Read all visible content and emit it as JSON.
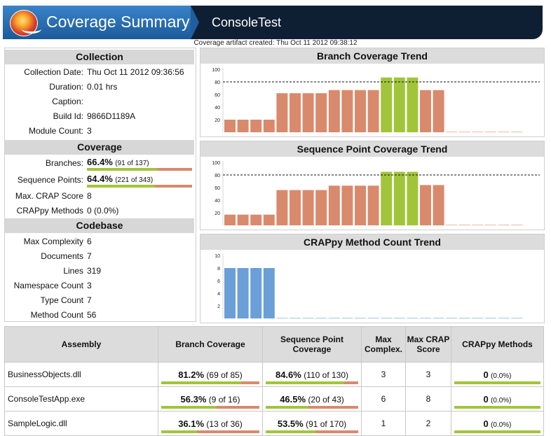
{
  "header": {
    "title": "Coverage Summary",
    "subtitle": "ConsoleTest",
    "artifact": "Coverage artifact created: Thu Oct 11 2012 09:38:12"
  },
  "collection": {
    "heading": "Collection",
    "rows": [
      {
        "label": "Collection Date:",
        "value": "Thu Oct 11 2012 09:36:56"
      },
      {
        "label": "Duration:",
        "value": "0.01 hrs"
      },
      {
        "label": "Caption:",
        "value": ""
      },
      {
        "label": "Build Id:",
        "value": "9866D1189A"
      },
      {
        "label": "Module Count:",
        "value": "3"
      }
    ]
  },
  "coverage": {
    "heading": "Coverage",
    "branches": {
      "label": "Branches:",
      "pct": "66.4%",
      "detail": "(91 of 137)",
      "fraction": 0.664
    },
    "sequence": {
      "label": "Sequence Points:",
      "pct": "64.4%",
      "detail": "(221 of 343)",
      "fraction": 0.644
    },
    "crap": {
      "label": "Max. CRAP Score",
      "value": "8"
    },
    "crappy": {
      "label": "CRAPpy Methods",
      "value": "0 (0.0%)"
    }
  },
  "codebase": {
    "heading": "Codebase",
    "rows": [
      {
        "label": "Max Complexity",
        "value": "6"
      },
      {
        "label": "Documents",
        "value": "7"
      },
      {
        "label": "Lines",
        "value": "319"
      },
      {
        "label": "Namespace Count",
        "value": "3"
      },
      {
        "label": "Type Count",
        "value": "7"
      },
      {
        "label": "Method Count",
        "value": "56"
      }
    ]
  },
  "chart_data": [
    {
      "type": "bar",
      "title": "Branch Coverage Trend",
      "ylim": [
        0,
        100
      ],
      "yticks": [
        "100",
        "80",
        "60",
        "40",
        "20"
      ],
      "reference": 80,
      "values": [
        20,
        20,
        20,
        20,
        62,
        62,
        62,
        62,
        67,
        67,
        67,
        67,
        87,
        87,
        87,
        67,
        67,
        0,
        0,
        0,
        0,
        0,
        0
      ],
      "colors": [
        "#d98a6c",
        "#d98a6c",
        "#d98a6c",
        "#d98a6c",
        "#d98a6c",
        "#d98a6c",
        "#d98a6c",
        "#d98a6c",
        "#d98a6c",
        "#d98a6c",
        "#d98a6c",
        "#d98a6c",
        "#a2c43a",
        "#a2c43a",
        "#a2c43a",
        "#d98a6c",
        "#d98a6c",
        "#d98a6c",
        "#d98a6c",
        "#d98a6c",
        "#d98a6c",
        "#d98a6c",
        "#d98a6c"
      ]
    },
    {
      "type": "bar",
      "title": "Sequence Point Coverage Trend",
      "ylim": [
        0,
        100
      ],
      "yticks": [
        "100",
        "80",
        "60",
        "40",
        "20"
      ],
      "reference": 80,
      "values": [
        17,
        17,
        17,
        17,
        56,
        56,
        56,
        56,
        63,
        63,
        63,
        63,
        85,
        85,
        85,
        64,
        64,
        0,
        0,
        0,
        0,
        0,
        0
      ],
      "colors": [
        "#d98a6c",
        "#d98a6c",
        "#d98a6c",
        "#d98a6c",
        "#d98a6c",
        "#d98a6c",
        "#d98a6c",
        "#d98a6c",
        "#d98a6c",
        "#d98a6c",
        "#d98a6c",
        "#d98a6c",
        "#a2c43a",
        "#a2c43a",
        "#a2c43a",
        "#d98a6c",
        "#d98a6c",
        "#d98a6c",
        "#d98a6c",
        "#d98a6c",
        "#d98a6c",
        "#d98a6c",
        "#d98a6c"
      ]
    },
    {
      "type": "bar",
      "title": "CRAPpy Method Count Trend",
      "ylim": [
        0,
        10
      ],
      "yticks": [
        "10",
        "8",
        "6",
        "4",
        "2"
      ],
      "values": [
        8,
        8,
        8,
        8,
        0,
        0,
        0,
        0,
        0,
        0,
        0,
        0,
        0,
        0,
        0,
        0,
        0,
        0,
        0,
        0,
        0,
        0,
        0
      ],
      "colors": [
        "#6a9fd8",
        "#6a9fd8",
        "#6a9fd8",
        "#6a9fd8",
        "#6a9fd8",
        "#6a9fd8",
        "#6a9fd8",
        "#6a9fd8",
        "#6a9fd8",
        "#6a9fd8",
        "#6a9fd8",
        "#6a9fd8",
        "#6a9fd8",
        "#6a9fd8",
        "#6a9fd8",
        "#6a9fd8",
        "#6a9fd8",
        "#6a9fd8",
        "#6a9fd8",
        "#6a9fd8",
        "#6a9fd8",
        "#6a9fd8",
        "#6a9fd8"
      ]
    }
  ],
  "table": {
    "headers": [
      "Assembly",
      "Branch Coverage",
      "Sequence Point Coverage",
      "Max Complex.",
      "Max CRAP Score",
      "CRAPpy Methods"
    ],
    "rows": [
      {
        "name": "BusinessObjects.dll",
        "branch_pct": "81.2%",
        "branch_detail": "(69 of 85)",
        "branch_frac": 0.812,
        "seq_pct": "84.6%",
        "seq_detail": "(110 of 130)",
        "seq_frac": 0.846,
        "complex": "3",
        "crap": "3",
        "crappy_count": "0",
        "crappy_pct": "(0.0%)"
      },
      {
        "name": "ConsoleTestApp.exe",
        "branch_pct": "56.3%",
        "branch_detail": "(9 of 16)",
        "branch_frac": 0.563,
        "seq_pct": "46.5%",
        "seq_detail": "(20 of 43)",
        "seq_frac": 0.465,
        "complex": "6",
        "crap": "8",
        "crappy_count": "0",
        "crappy_pct": "(0.0%)"
      },
      {
        "name": "SampleLogic.dll",
        "branch_pct": "36.1%",
        "branch_detail": "(13 of 36)",
        "branch_frac": 0.361,
        "seq_pct": "53.5%",
        "seq_detail": "(91 of 170)",
        "seq_frac": 0.535,
        "complex": "1",
        "crap": "2",
        "crappy_count": "0",
        "crappy_pct": "(0.0%)"
      }
    ]
  },
  "colors": {
    "green": "#a2c43a",
    "red": "#d98a6c",
    "blue": "#6a9fd8"
  }
}
